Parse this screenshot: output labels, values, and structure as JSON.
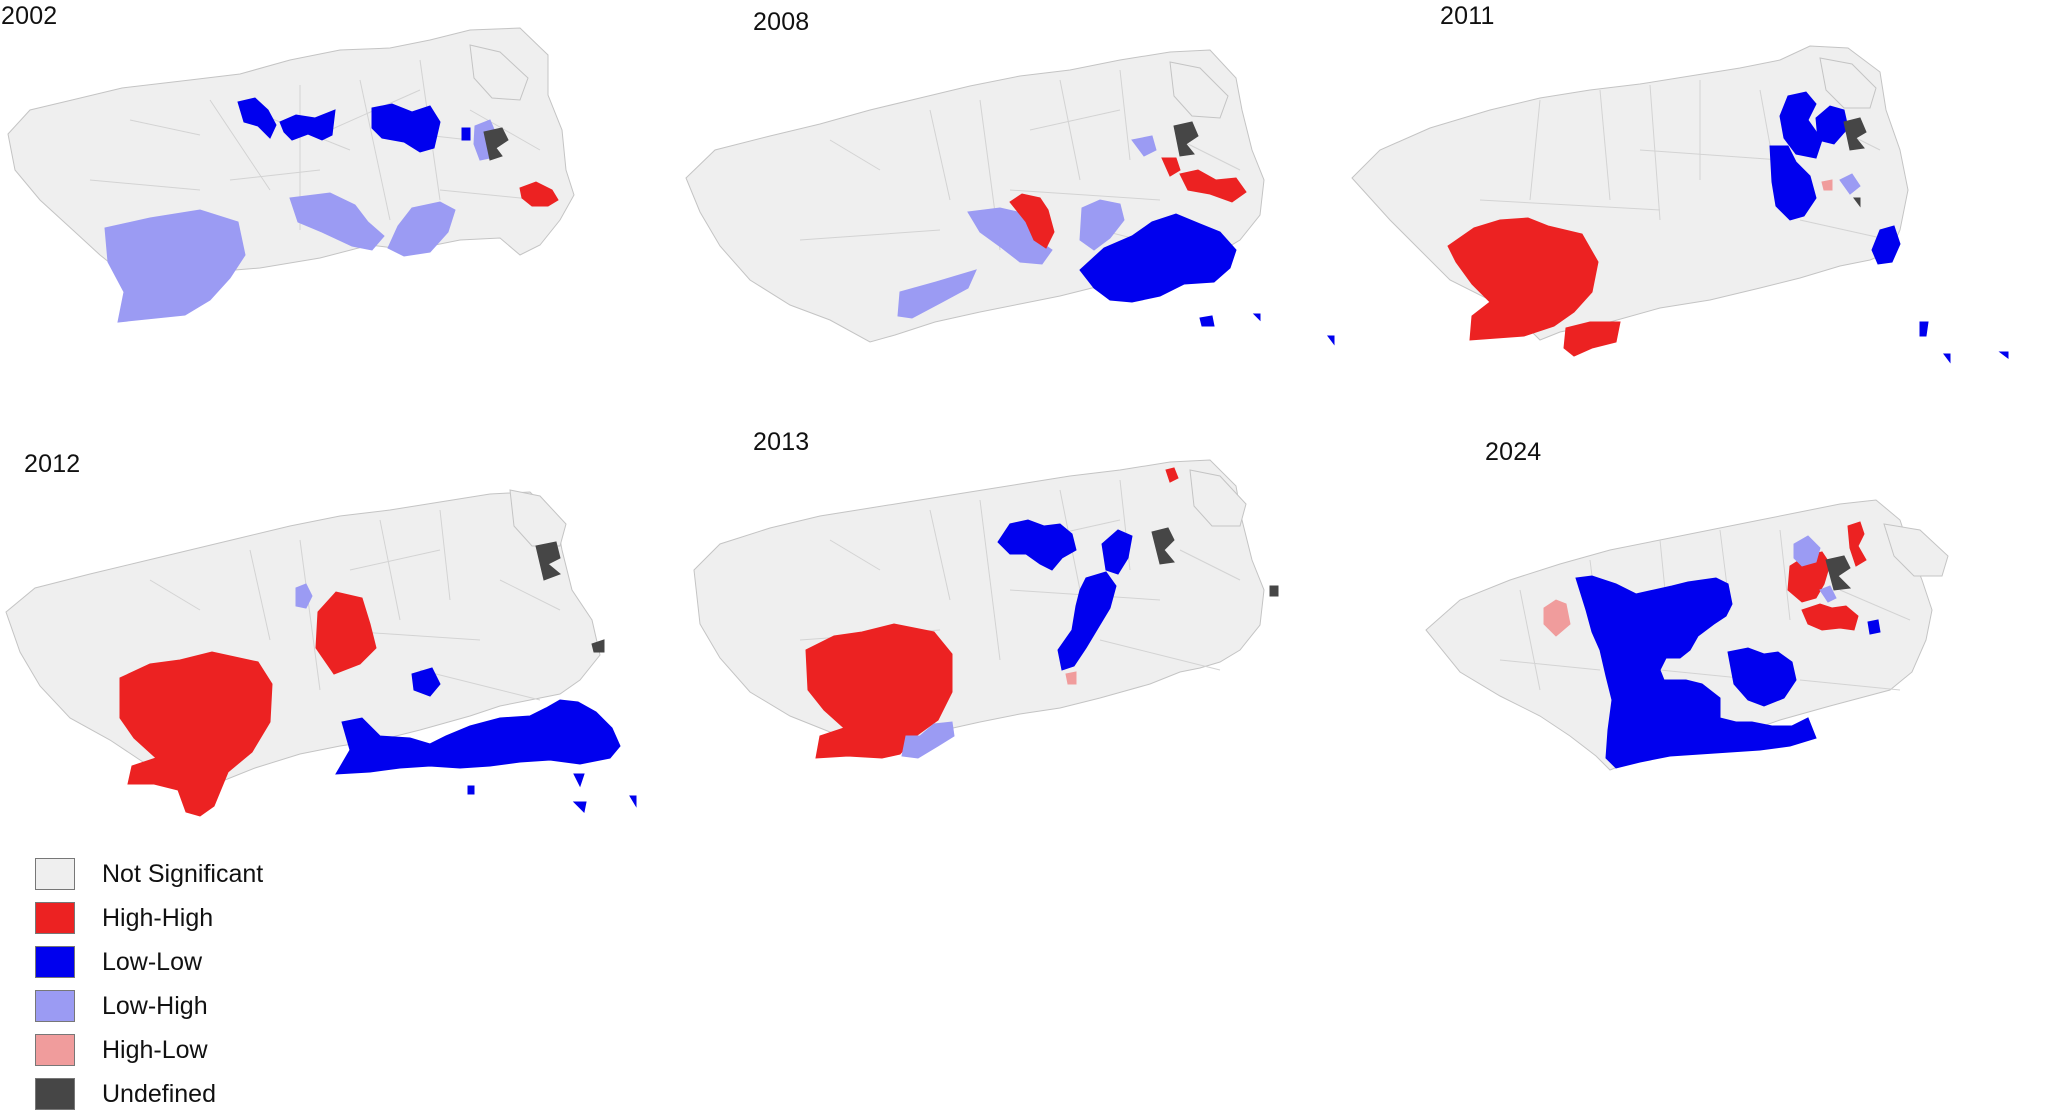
{
  "legend": {
    "items": [
      {
        "key": "ns",
        "label": "Not Significant",
        "color": "#efefef"
      },
      {
        "key": "hh",
        "label": "High-High",
        "color": "#ec2222"
      },
      {
        "key": "ll",
        "label": "Low-Low",
        "color": "#0000ee"
      },
      {
        "key": "lh",
        "label": "Low-High",
        "color": "#9b9bf3"
      },
      {
        "key": "hl",
        "label": "High-Low",
        "color": "#f09c9c"
      },
      {
        "key": "ud",
        "label": "Undefined",
        "color": "#464646"
      }
    ]
  },
  "maps": [
    {
      "year": "2002",
      "clusters": [
        "ll",
        "ll",
        "ll",
        "ll",
        "lh",
        "lh",
        "lh",
        "lh",
        "hh",
        "ud"
      ]
    },
    {
      "year": "2008",
      "clusters": [
        "lh",
        "hh",
        "lh",
        "ll",
        "lh",
        "hh",
        "hh",
        "lh",
        "ud",
        "ll"
      ]
    },
    {
      "year": "2011",
      "clusters": [
        "hh",
        "hh",
        "ll",
        "ll",
        "ll",
        "lh",
        "hl",
        "ud",
        "ll",
        "ll"
      ]
    },
    {
      "year": "2012",
      "clusters": [
        "hh",
        "hh",
        "lh",
        "ll",
        "ll",
        "ud",
        "ll"
      ]
    },
    {
      "year": "2013",
      "clusters": [
        "hh",
        "lh",
        "ll",
        "ll",
        "ll",
        "hl",
        "hh",
        "ud",
        "ud"
      ]
    },
    {
      "year": "2024",
      "clusters": [
        "hl",
        "ll",
        "ll",
        "hh",
        "lh",
        "hh",
        "ud",
        "hh",
        "ll"
      ]
    }
  ]
}
